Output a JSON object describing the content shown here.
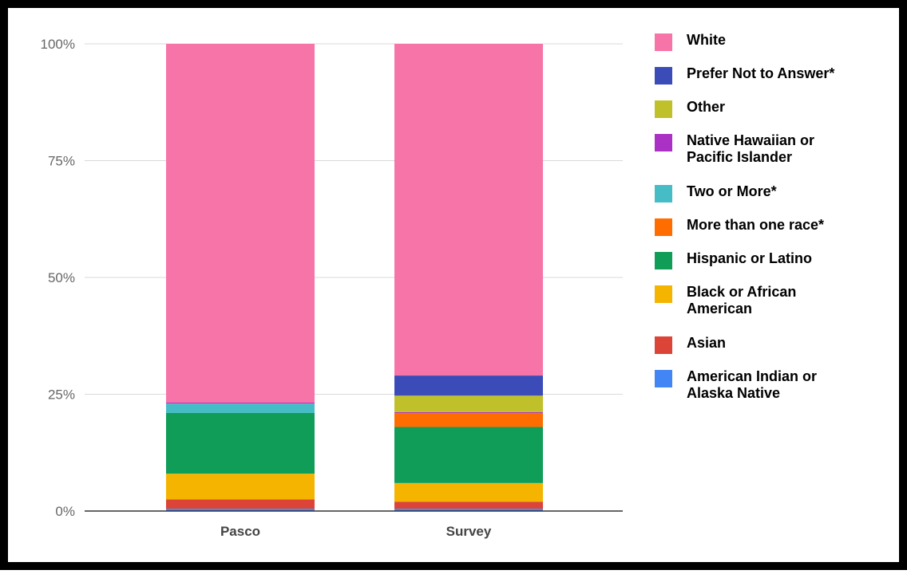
{
  "chart_data": {
    "type": "bar",
    "stacked": true,
    "categories": [
      "Pasco",
      "Survey"
    ],
    "ylim": [
      0,
      100
    ],
    "y_ticks": [
      "0%",
      "25%",
      "50%",
      "75%",
      "100%"
    ],
    "grid": true,
    "legend_position": "right",
    "series": [
      {
        "name": "American Indian or Alaska Native",
        "color": "#4285f4",
        "values": [
          0.5,
          0.5
        ]
      },
      {
        "name": "Asian",
        "color": "#db4437",
        "values": [
          2.0,
          1.5
        ]
      },
      {
        "name": "Black or African American",
        "color": "#f4b400",
        "values": [
          5.5,
          4.0
        ]
      },
      {
        "name": "Hispanic or Latino",
        "color": "#0f9d58",
        "values": [
          13.0,
          12.0
        ]
      },
      {
        "name": "More than one race*",
        "color": "#ff6d00",
        "values": [
          0,
          3.0
        ]
      },
      {
        "name": "Two or More*",
        "color": "#46bdc6",
        "values": [
          2.0,
          0
        ]
      },
      {
        "name": "Native Hawaiian or Pacific Islander",
        "color": "#ab30c4",
        "values": [
          0.2,
          0.2
        ]
      },
      {
        "name": "Other",
        "color": "#c0c02a",
        "values": [
          0,
          3.5
        ]
      },
      {
        "name": "Prefer Not to Answer*",
        "color": "#3b4cb8",
        "values": [
          0,
          4.3
        ]
      },
      {
        "name": "White",
        "color": "#f774a8",
        "values": [
          76.8,
          71.0
        ]
      }
    ]
  },
  "legend": [
    {
      "label": "White",
      "color": "#f774a8"
    },
    {
      "label": "Prefer Not to Answer*",
      "color": "#3b4cb8"
    },
    {
      "label": "Other",
      "color": "#c0c02a"
    },
    {
      "label": "Native Hawaiian or\nPacific Islander",
      "color": "#ab30c4"
    },
    {
      "label": "Two or More*",
      "color": "#46bdc6"
    },
    {
      "label": "More than one race*",
      "color": "#ff6d00"
    },
    {
      "label": "Hispanic or Latino",
      "color": "#0f9d58"
    },
    {
      "label": "Black or African\nAmerican",
      "color": "#f4b400"
    },
    {
      "label": "Asian",
      "color": "#db4437"
    },
    {
      "label": "American Indian or\nAlaska Native",
      "color": "#4285f4"
    }
  ]
}
